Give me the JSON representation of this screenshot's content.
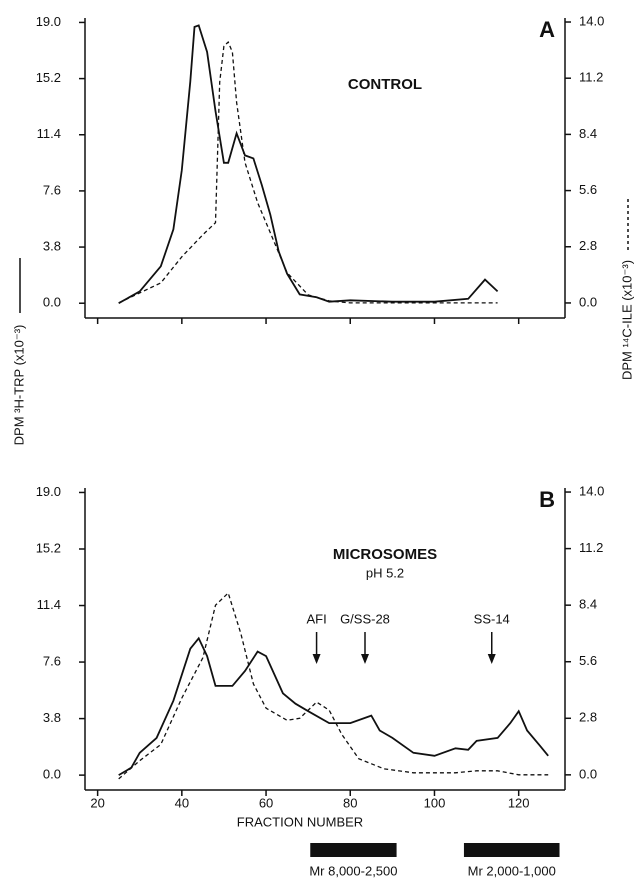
{
  "chart_data": [
    {
      "type": "line",
      "panel_label": "A",
      "annotation": "CONTROL",
      "y_label": "DPM ³H-TRP (x10⁻³)",
      "y2_label": "DPM ¹⁴C-ILE (x10⁻³)",
      "xlim": [
        17,
        131
      ],
      "ylim": [
        -1,
        19.3
      ],
      "yticks": [
        {
          "value": 0,
          "label": "0.0"
        },
        3.8,
        7.6,
        11.4,
        15.2,
        {
          "value": 19,
          "label": "19.0"
        }
      ],
      "y2lim": [
        -0.75,
        14.2
      ],
      "y2ticks": [
        {
          "value": 0,
          "label": "0.0"
        },
        2.8,
        5.6,
        8.4,
        11.2,
        {
          "value": 14,
          "label": "14.0"
        }
      ],
      "series": [
        {
          "color": "#111111",
          "line_style": "solid",
          "x": [
            25,
            30,
            35,
            38,
            40,
            42,
            43,
            44,
            46,
            48,
            50,
            51,
            53,
            55,
            57,
            59,
            61,
            63,
            65,
            68,
            72,
            75,
            80,
            90,
            100,
            108,
            112,
            115
          ],
          "values": [
            0,
            0.8,
            2.5,
            5,
            9,
            15,
            18.7,
            18.8,
            17,
            13,
            9.5,
            9.5,
            11.5,
            10,
            9.8,
            8,
            6,
            3.5,
            2,
            0.6,
            0.4,
            0.1,
            0.2,
            0.1,
            0.1,
            0.3,
            1.6,
            0.8
          ]
        },
        {
          "color": "#111111",
          "line_style": "dashed",
          "axis": "y2",
          "x": [
            25,
            30,
            35,
            40,
            45,
            48,
            49,
            50,
            51,
            52,
            53,
            55,
            58,
            62,
            65,
            70,
            75,
            80,
            115
          ],
          "values": [
            0,
            0.5,
            1,
            2.3,
            3.4,
            4,
            11,
            12.8,
            13,
            12.5,
            10,
            7,
            5,
            3,
            1.5,
            0.4,
            0.1,
            0,
            0
          ]
        }
      ]
    },
    {
      "type": "line",
      "panel_label": "B",
      "annotation": "MICROSOMES",
      "subtitle": "pH 5.2",
      "x_label": "FRACTION NUMBER",
      "xlim": [
        17,
        131
      ],
      "xticks": [
        20,
        40,
        60,
        80,
        100,
        120
      ],
      "ylim": [
        -1,
        19.3
      ],
      "yticks": [
        {
          "value": 0,
          "label": "0.0"
        },
        3.8,
        7.6,
        11.4,
        15.2,
        {
          "value": 19,
          "label": "19.0"
        }
      ],
      "y2lim": [
        -0.75,
        14.2
      ],
      "y2ticks": [
        {
          "value": 0,
          "label": "0.0"
        },
        2.8,
        5.6,
        8.4,
        11.2,
        {
          "value": 14,
          "label": "14.0"
        }
      ],
      "series": [
        {
          "color": "#111111",
          "line_style": "solid",
          "x": [
            25,
            28,
            30,
            34,
            38,
            42,
            44,
            46,
            48,
            52,
            55,
            58,
            60,
            64,
            67,
            70,
            75,
            80,
            85,
            87,
            90,
            95,
            100,
            105,
            108,
            110,
            115,
            118,
            120,
            122,
            125,
            127
          ],
          "values": [
            0,
            0.5,
            1.5,
            2.5,
            5,
            8.5,
            9.2,
            8,
            6,
            6,
            7,
            8.3,
            8,
            5.5,
            4.8,
            4.3,
            3.5,
            3.5,
            4,
            3,
            2.5,
            1.5,
            1.3,
            1.8,
            1.7,
            2.3,
            2.5,
            3.5,
            4.3,
            3,
            2,
            1.3
          ]
        },
        {
          "color": "#111111",
          "line_style": "dashed",
          "axis": "y2",
          "x": [
            25,
            30,
            35,
            40,
            45,
            48,
            51,
            54,
            57,
            60,
            65,
            68,
            72,
            75,
            78,
            82,
            88,
            95,
            100,
            105,
            110,
            115,
            120,
            127
          ],
          "values": [
            -0.2,
            0.7,
            1.5,
            3.8,
            5.8,
            8.4,
            9,
            7,
            4.5,
            3.3,
            2.7,
            2.8,
            3.6,
            3.2,
            2,
            0.8,
            0.3,
            0.1,
            0.1,
            0.1,
            0.2,
            0.2,
            0,
            0
          ]
        }
      ],
      "markers": [
        {
          "text": "AFI",
          "x": 72
        },
        {
          "text": "G/SS-28",
          "x": 83.5
        },
        {
          "text": "SS-14",
          "x": 113.6
        }
      ],
      "ranges": [
        {
          "text": "Mr 8,000-2,500",
          "x": [
            70.5,
            91
          ]
        },
        {
          "text": "Mr 2,000-1,000",
          "x": [
            107,
            129.7
          ]
        }
      ]
    }
  ]
}
